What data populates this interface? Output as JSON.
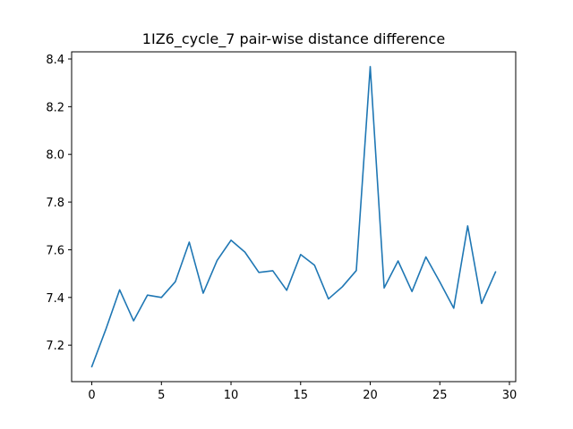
{
  "chart_data": {
    "type": "line",
    "title": "1IZ6_cycle_7 pair-wise distance difference",
    "xlabel": "",
    "ylabel": "",
    "xlim": [
      -1.45,
      30.45
    ],
    "ylim": [
      7.047,
      8.43
    ],
    "x_ticks": [
      0,
      5,
      10,
      15,
      20,
      25,
      30
    ],
    "y_ticks": [
      7.2,
      7.4,
      7.6,
      7.8,
      8.0,
      8.2,
      8.4
    ],
    "x_tick_labels": [
      "0",
      "5",
      "10",
      "15",
      "20",
      "25",
      "30"
    ],
    "y_tick_labels": [
      "7.2",
      "7.4",
      "7.6",
      "7.8",
      "8.0",
      "8.2",
      "8.4"
    ],
    "grid": false,
    "legend": "none",
    "series": [
      {
        "color": "#1f77b4",
        "x": [
          0,
          1,
          2,
          3,
          4,
          5,
          6,
          7,
          8,
          9,
          10,
          11,
          12,
          13,
          14,
          15,
          16,
          17,
          18,
          19,
          20,
          21,
          22,
          23,
          24,
          25,
          26,
          27,
          28,
          29
        ],
        "values": [
          7.11,
          7.265,
          7.432,
          7.302,
          7.41,
          7.4,
          7.466,
          7.632,
          7.418,
          7.555,
          7.64,
          7.59,
          7.505,
          7.512,
          7.43,
          7.58,
          7.535,
          7.394,
          7.445,
          7.513,
          8.368,
          7.44,
          7.553,
          7.425,
          7.57,
          7.465,
          7.355,
          7.7,
          7.375,
          7.507
        ]
      }
    ]
  }
}
